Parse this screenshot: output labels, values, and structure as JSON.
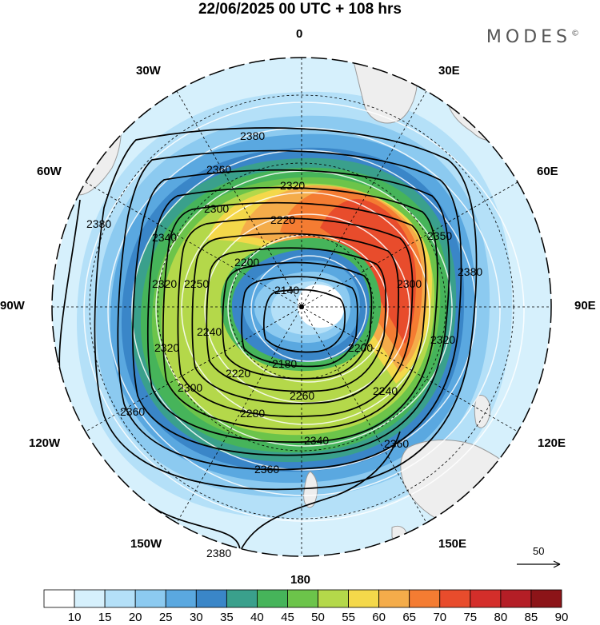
{
  "title": "22/06/2025  00 UTC  + 108 hrs",
  "brand": "MODES",
  "brand_mark": "©",
  "longitude_labels": {
    "n": "0",
    "ne": "30E",
    "ene": "60E",
    "e": "90E",
    "ese": "120E",
    "se": "150E",
    "s": "180",
    "sw": "150W",
    "wsw": "120W",
    "w": "90W",
    "wnw": "60W",
    "nw": "30W"
  },
  "contour_labels": {
    "c1": "2380",
    "c2": "2360",
    "c3": "2320",
    "c4": "2300",
    "c5": "2220",
    "c6": "2350",
    "c7": "2200",
    "c8": "2140",
    "c9": "2250",
    "c10": "2340",
    "c11": "2320",
    "c12": "2240",
    "c13": "2320",
    "c14": "2380",
    "c15": "2180",
    "c16": "2200",
    "c17": "2220",
    "c18": "2260",
    "c19": "2280",
    "c20": "2300",
    "c21": "2340",
    "c22": "2360",
    "c23": "2360",
    "c24": "2240",
    "c25": "2360",
    "c26": "2380",
    "c27": "2320",
    "c28": "2300",
    "c29": "2380"
  },
  "vector_reference": {
    "value": "50"
  },
  "colorbar": {
    "ticks": [
      "10",
      "15",
      "20",
      "25",
      "30",
      "35",
      "40",
      "45",
      "50",
      "55",
      "60",
      "65",
      "70",
      "75",
      "80",
      "85",
      "90"
    ],
    "colors": [
      "#ffffff",
      "#d6f0fc",
      "#b4e0f8",
      "#8ccaf0",
      "#5aa8e0",
      "#3a86c8",
      "#3aa08c",
      "#46b45a",
      "#6cc44a",
      "#b4d84a",
      "#f4d84a",
      "#f4ac4a",
      "#f47c32",
      "#e84c2c",
      "#d42e2a",
      "#b41e26",
      "#8c1418"
    ]
  },
  "colors": {
    "land": "#eeeeee",
    "land_edge": "#9a9a9a",
    "contour": "#000000",
    "wind_arrow": "#ffffff",
    "grid": "#000000"
  }
}
